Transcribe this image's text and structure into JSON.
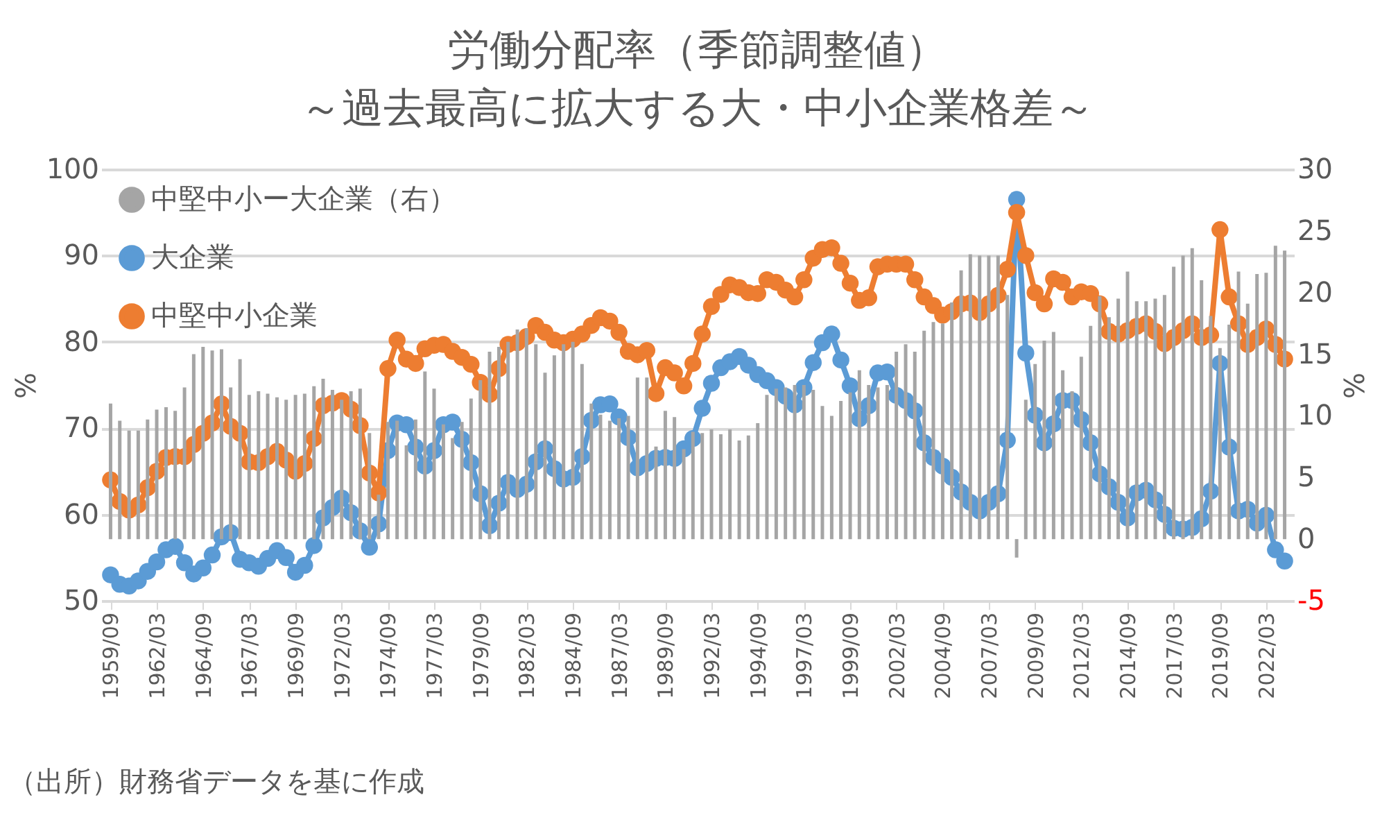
{
  "chart_data": {
    "type": "line",
    "title": "労働分配率（季節調整値）",
    "subtitle": "～過去最高に拡大する大・中小企業格差～",
    "ylabel": "%",
    "y2label": "%",
    "annotations": [
      "（出所）財務省データを基に作成"
    ],
    "x": [
      "1959-09",
      "1960-03",
      "1960-09",
      "1961-03",
      "1961-09",
      "1962-03",
      "1962-09",
      "1963-03",
      "1963-09",
      "1964-03",
      "1964-09",
      "1965-03",
      "1965-09",
      "1966-03",
      "1966-09",
      "1967-03",
      "1967-09",
      "1968-03",
      "1968-09",
      "1969-03",
      "1969-09",
      "1970-03",
      "1970-09",
      "1971-03",
      "1971-09",
      "1972-03",
      "1972-09",
      "1973-03",
      "1973-09",
      "1974-03",
      "1974-09",
      "1975-03",
      "1975-09",
      "1976-03",
      "1976-09",
      "1977-03",
      "1977-09",
      "1978-03",
      "1978-09",
      "1979-03",
      "1979-09",
      "1980-03",
      "1980-09",
      "1981-03",
      "1981-09",
      "1982-03",
      "1982-09",
      "1983-03",
      "1983-09",
      "1984-03",
      "1984-09",
      "1985-03",
      "1985-09",
      "1986-03",
      "1986-09",
      "1987-03",
      "1987-09",
      "1988-03",
      "1988-09",
      "1989-03",
      "1989-09",
      "1990-03",
      "1990-09",
      "1991-03",
      "1991-09",
      "1992-03",
      "1992-09",
      "1993-03",
      "1993-09",
      "1994-03",
      "1994-09",
      "1995-03",
      "1995-09",
      "1996-03",
      "1996-09",
      "1997-03",
      "1997-09",
      "1998-03",
      "1998-09",
      "1999-03",
      "1999-09",
      "2000-03",
      "2000-09",
      "2001-03",
      "2001-09",
      "2002-03",
      "2002-09",
      "2003-03",
      "2003-09",
      "2004-03",
      "2004-09",
      "2005-03",
      "2005-09",
      "2006-03",
      "2006-09",
      "2007-03",
      "2007-09",
      "2008-03",
      "2008-09",
      "2009-03",
      "2009-09",
      "2010-03",
      "2010-09",
      "2011-03",
      "2011-09",
      "2012-03",
      "2012-09",
      "2013-03",
      "2013-09",
      "2014-03",
      "2014-09",
      "2015-03",
      "2015-09",
      "2016-03",
      "2016-09",
      "2017-03",
      "2017-09",
      "2018-03",
      "2018-09",
      "2019-03",
      "2019-09",
      "2020-03",
      "2020-09",
      "2021-03",
      "2021-09",
      "2022-03",
      "2022-09",
      "2023-03"
    ],
    "series": [
      {
        "name": "中堅中小ー大企業（右）",
        "type": "bar",
        "axis": "y2",
        "color": "#a5a5a5",
        "values": [
          11.0,
          9.6,
          8.8,
          8.8,
          9.7,
          10.5,
          10.7,
          10.4,
          12.3,
          15.0,
          15.6,
          15.3,
          15.4,
          12.3,
          14.6,
          11.7,
          12.0,
          11.8,
          11.5,
          11.3,
          11.7,
          11.8,
          12.4,
          13.0,
          12.1,
          11.3,
          12.0,
          12.2,
          8.6,
          3.6,
          9.5,
          9.6,
          7.6,
          9.7,
          13.6,
          12.2,
          9.3,
          8.2,
          9.5,
          11.4,
          12.9,
          15.2,
          15.6,
          16.0,
          17.0,
          17.1,
          15.8,
          13.5,
          14.9,
          15.8,
          16.0,
          14.2,
          11.0,
          10.1,
          9.6,
          9.8,
          10.0,
          13.1,
          13.1,
          7.5,
          10.4,
          9.9,
          7.3,
          8.7,
          8.6,
          8.9,
          8.5,
          8.9,
          8.0,
          8.4,
          9.4,
          11.7,
          12.2,
          12.3,
          12.5,
          12.5,
          12.1,
          10.8,
          10.0,
          11.2,
          11.9,
          13.7,
          12.5,
          12.3,
          12.5,
          15.2,
          15.8,
          15.2,
          16.9,
          17.6,
          17.5,
          19.2,
          21.8,
          23.1,
          23.0,
          23.0,
          23.0,
          19.8,
          -1.5,
          11.3,
          14.2,
          16.1,
          16.8,
          13.7,
          12.0,
          14.8,
          17.3,
          19.7,
          18.0,
          19.5,
          21.7,
          19.3,
          19.3,
          19.5,
          19.8,
          22.1,
          23.0,
          23.6,
          21.0,
          18.1,
          15.5,
          17.4,
          21.7,
          19.1,
          21.5,
          21.6,
          23.8,
          23.4
        ]
      },
      {
        "name": "大企業",
        "color": "#5b9bd5",
        "values": [
          53.0,
          51.9,
          51.7,
          52.3,
          53.4,
          54.5,
          55.9,
          56.3,
          54.4,
          53.1,
          53.8,
          55.3,
          57.4,
          57.9,
          54.8,
          54.4,
          54.0,
          54.9,
          55.8,
          55.0,
          53.3,
          54.1,
          56.4,
          59.6,
          60.8,
          61.9,
          60.2,
          58.1,
          56.2,
          58.9,
          67.4,
          70.6,
          70.4,
          67.8,
          65.6,
          67.4,
          70.4,
          70.7,
          68.7,
          66.0,
          62.4,
          58.7,
          61.3,
          63.7,
          62.9,
          63.5,
          66.1,
          67.6,
          65.3,
          64.1,
          64.3,
          66.7,
          70.9,
          72.7,
          72.8,
          71.3,
          68.9,
          65.4,
          65.9,
          66.5,
          66.6,
          66.5,
          67.6,
          68.8,
          72.3,
          75.2,
          77.0,
          77.7,
          78.3,
          77.3,
          76.2,
          75.5,
          74.7,
          73.7,
          72.7,
          74.7,
          77.6,
          79.9,
          80.9,
          77.9,
          74.9,
          71.1,
          72.6,
          76.4,
          76.5,
          73.8,
          73.2,
          72.0,
          68.3,
          66.6,
          65.6,
          64.3,
          62.6,
          61.4,
          60.4,
          61.4,
          62.4,
          68.6,
          96.5,
          78.7,
          71.5,
          68.3,
          70.5,
          73.2,
          73.2,
          71.0,
          68.3,
          64.7,
          63.2,
          61.4,
          59.6,
          62.5,
          62.8,
          61.7,
          60.0,
          58.4,
          58.3,
          58.5,
          59.5,
          62.7,
          77.5,
          67.8,
          60.4,
          60.6,
          59.0,
          59.9,
          55.9,
          54.6
        ]
      },
      {
        "name": "中堅中小企業",
        "color": "#ed7d31",
        "values": [
          64.0,
          61.5,
          60.5,
          61.1,
          63.1,
          65.0,
          66.6,
          66.7,
          66.7,
          68.1,
          69.4,
          70.6,
          72.8,
          70.2,
          69.4,
          66.1,
          66.0,
          66.7,
          67.3,
          66.3,
          65.0,
          65.9,
          68.8,
          72.6,
          72.9,
          73.2,
          72.2,
          70.3,
          64.8,
          62.5,
          76.9,
          80.2,
          78.0,
          77.5,
          79.2,
          79.6,
          79.7,
          78.9,
          78.2,
          77.4,
          75.3,
          73.9,
          76.9,
          79.7,
          79.9,
          80.6,
          81.9,
          81.1,
          80.2,
          79.9,
          80.3,
          80.9,
          81.9,
          82.8,
          82.4,
          81.1,
          78.9,
          78.5,
          79.0,
          74.0,
          77.0,
          76.4,
          74.9,
          77.5,
          80.9,
          84.1,
          85.5,
          86.6,
          86.3,
          85.7,
          85.6,
          87.2,
          86.9,
          86.0,
          85.2,
          87.2,
          89.7,
          90.7,
          90.9,
          89.1,
          86.8,
          84.8,
          85.1,
          88.7,
          89.0,
          89.0,
          89.0,
          87.2,
          85.2,
          84.2,
          83.1,
          83.5,
          84.4,
          84.5,
          83.4,
          84.4,
          85.4,
          88.4,
          95.0,
          90.0,
          85.7,
          84.4,
          87.3,
          86.9,
          85.2,
          85.8,
          85.6,
          84.4,
          81.2,
          80.9,
          81.3,
          81.8,
          82.1,
          81.2,
          79.8,
          80.5,
          81.3,
          82.1,
          80.5,
          80.8,
          93.0,
          85.2,
          82.1,
          79.7,
          80.5,
          81.5,
          79.7,
          78.0
        ]
      }
    ],
    "xlim": [
      "1959-03",
      "2023-09"
    ],
    "xticks": [
      {
        "value": "1959-09",
        "label": "1959/09"
      },
      {
        "value": "1962-03",
        "label": "1962/03"
      },
      {
        "value": "1964-09",
        "label": "1964/09"
      },
      {
        "value": "1967-03",
        "label": "1967/03"
      },
      {
        "value": "1969-09",
        "label": "1969/09"
      },
      {
        "value": "1972-03",
        "label": "1972/03"
      },
      {
        "value": "1974-09",
        "label": "1974/09"
      },
      {
        "value": "1977-03",
        "label": "1977/03"
      },
      {
        "value": "1979-09",
        "label": "1979/09"
      },
      {
        "value": "1982-03",
        "label": "1982/03"
      },
      {
        "value": "1984-09",
        "label": "1984/09"
      },
      {
        "value": "1987-03",
        "label": "1987/03"
      },
      {
        "value": "1989-09",
        "label": "1989/09"
      },
      {
        "value": "1992-03",
        "label": "1992/03"
      },
      {
        "value": "1994-09",
        "label": "1994/09"
      },
      {
        "value": "1997-03",
        "label": "1997/03"
      },
      {
        "value": "1999-09",
        "label": "1999/09"
      },
      {
        "value": "2002-03",
        "label": "2002/03"
      },
      {
        "value": "2004-09",
        "label": "2004/09"
      },
      {
        "value": "2007-03",
        "label": "2007/03"
      },
      {
        "value": "2009-09",
        "label": "2009/09"
      },
      {
        "value": "2012-03",
        "label": "2012/03"
      },
      {
        "value": "2014-09",
        "label": "2014/09"
      },
      {
        "value": "2017-03",
        "label": "2017/03"
      },
      {
        "value": "2019-09",
        "label": "2019/09"
      },
      {
        "value": "2022-03",
        "label": "2022/03"
      }
    ],
    "ylim": [
      50,
      100
    ],
    "yticks": [
      50,
      60,
      70,
      80,
      90,
      100
    ],
    "y2lim": [
      -5,
      30
    ],
    "y2ticks": [
      -5,
      0,
      5,
      10,
      15,
      20,
      25,
      30
    ],
    "grid": "y",
    "legend": "top left",
    "marker": "circle",
    "line_style": "solid"
  }
}
